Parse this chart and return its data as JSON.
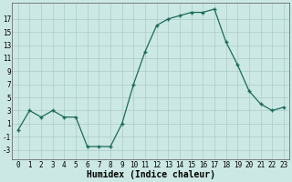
{
  "x": [
    0,
    1,
    2,
    3,
    4,
    5,
    6,
    7,
    8,
    9,
    10,
    11,
    12,
    13,
    14,
    15,
    16,
    17,
    18,
    19,
    20,
    21,
    22,
    23
  ],
  "y": [
    0,
    3,
    2,
    3,
    2,
    2,
    -2.5,
    -2.5,
    -2.5,
    1,
    7,
    12,
    16,
    17,
    17.5,
    18,
    18,
    18.5,
    13.5,
    10,
    6,
    4,
    3,
    3.5
  ],
  "line_color": "#1a6b5a",
  "marker": "D",
  "marker_size": 2.0,
  "bg_color": "#cce8e4",
  "grid_color": "#aaccca",
  "xlabel": "Humidex (Indice chaleur)",
  "xlabel_fontsize": 7,
  "yticks": [
    -3,
    -1,
    1,
    3,
    5,
    7,
    9,
    11,
    13,
    15,
    17
  ],
  "xtick_labels": [
    "0",
    "1",
    "2",
    "3",
    "4",
    "5",
    "6",
    "7",
    "8",
    "9",
    "10",
    "11",
    "12",
    "13",
    "14",
    "15",
    "16",
    "17",
    "18",
    "19",
    "20",
    "21",
    "22",
    "23"
  ],
  "ylim": [
    -4.5,
    19.5
  ],
  "xlim": [
    -0.5,
    23.5
  ],
  "tick_fontsize": 5.5
}
